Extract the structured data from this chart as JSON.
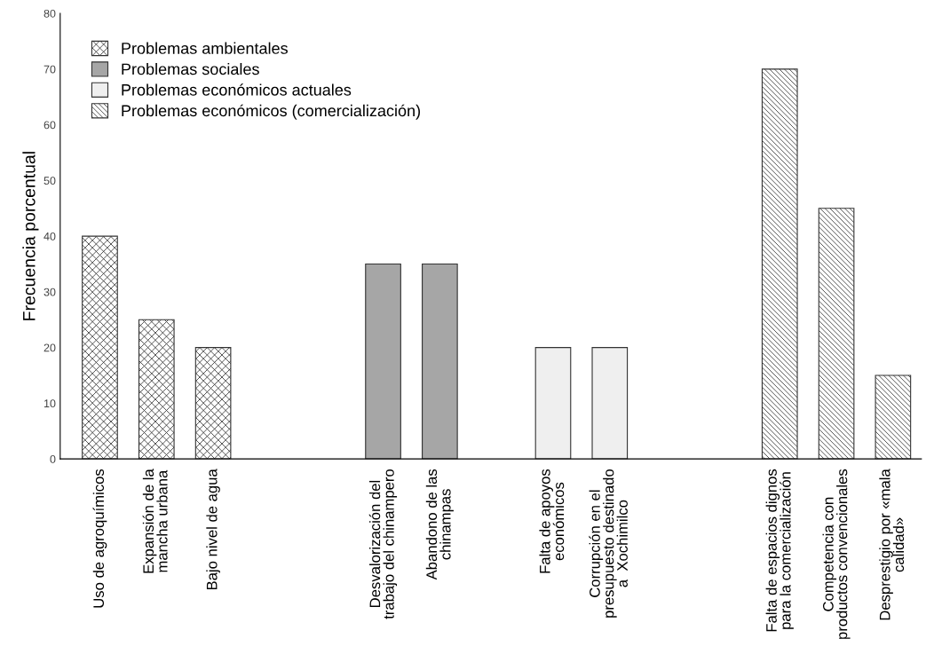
{
  "chart_data": {
    "type": "bar",
    "ylabel": "Frecuencia porcentual",
    "categories": [
      "Uso de agroquímicos",
      "Expansión de la\nmancha urbana",
      "Bajo nivel de agua",
      null,
      null,
      "Desvalorización del\ntrabajo del chinampero",
      "Abandono de las\nchinampas",
      null,
      "Falta de apoyos\neconómicos",
      "Corrupción en el\npresupuesto destinado\na  Xochimilco",
      null,
      null,
      "Falta de espacios dignos\npara la comercialización",
      "Competencia con\nproductos convencionales",
      "Desprestigio por «mala\ncalidad»"
    ],
    "series": [
      {
        "name": "Problemas ambientales",
        "color": "#333333",
        "values": [
          40,
          25,
          20,
          null,
          null,
          null,
          null,
          null,
          null,
          null,
          null,
          null,
          null,
          null,
          null
        ]
      },
      {
        "name": "Problemas sociales",
        "color": "#a6a6a6",
        "values": [
          null,
          null,
          null,
          null,
          null,
          35,
          35,
          null,
          null,
          null,
          null,
          null,
          null,
          null,
          null
        ]
      },
      {
        "name": "Problemas económicos actuales",
        "color": "#efefef",
        "values": [
          null,
          null,
          null,
          null,
          null,
          null,
          null,
          null,
          20,
          20,
          null,
          null,
          null,
          null,
          null
        ]
      },
      {
        "name": "Problemas económicos (comercialización)",
        "color": "#333333",
        "values": [
          null,
          null,
          null,
          null,
          null,
          null,
          null,
          null,
          null,
          null,
          null,
          null,
          70,
          45,
          15
        ]
      }
    ],
    "ylim": [
      0,
      80
    ],
    "yticks": [
      0,
      10,
      20,
      30,
      40,
      50,
      60,
      70,
      80
    ],
    "grid": false,
    "legend": "top left"
  }
}
